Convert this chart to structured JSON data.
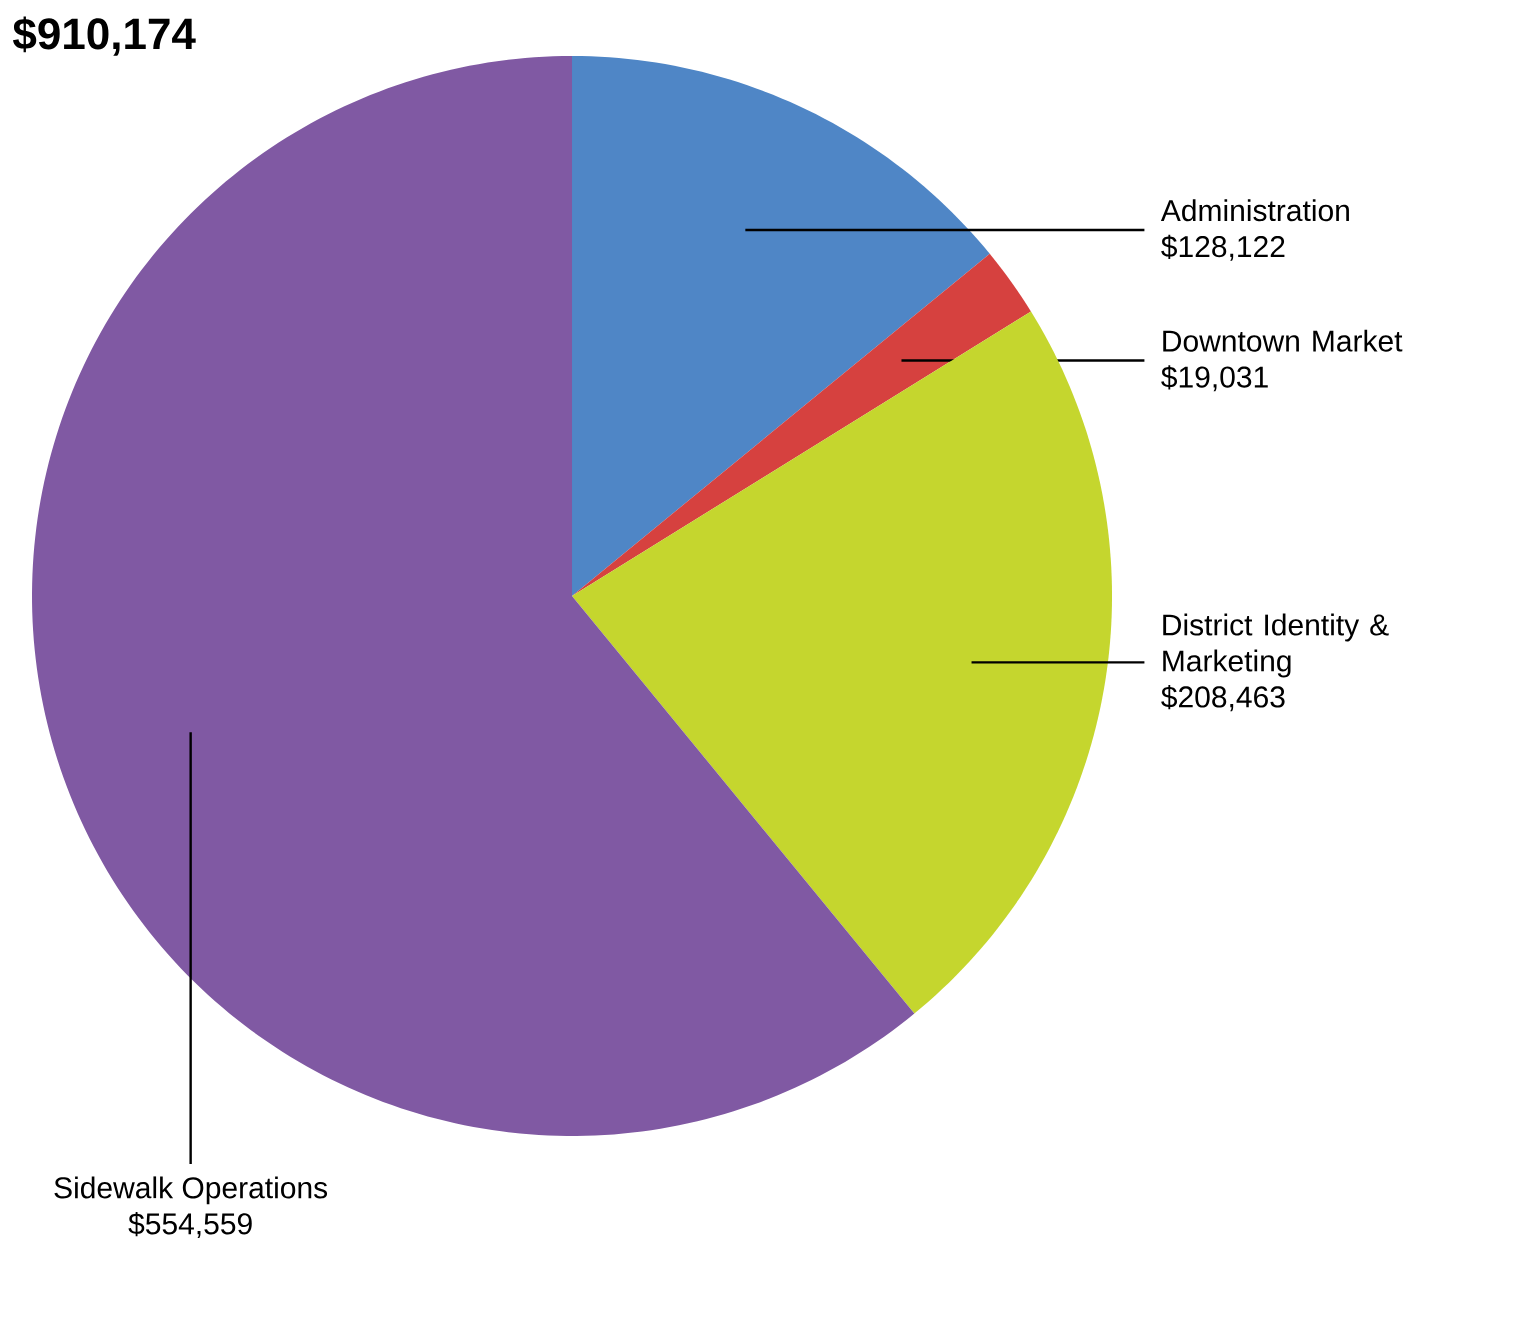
{
  "chart_data": {
    "type": "pie",
    "title": "$910,174",
    "categories": [
      "Administration",
      "Downtown Market",
      "District Identity & Marketing",
      "Sidewalk Operations"
    ],
    "values": [
      128122,
      19031,
      208463,
      554559
    ],
    "value_labels": [
      "$128,122",
      "$19,031",
      "$208,463",
      "$554,559"
    ],
    "colors": [
      "#4f86c6",
      "#d6413f",
      "#c5d62e",
      "#8059a3"
    ]
  }
}
